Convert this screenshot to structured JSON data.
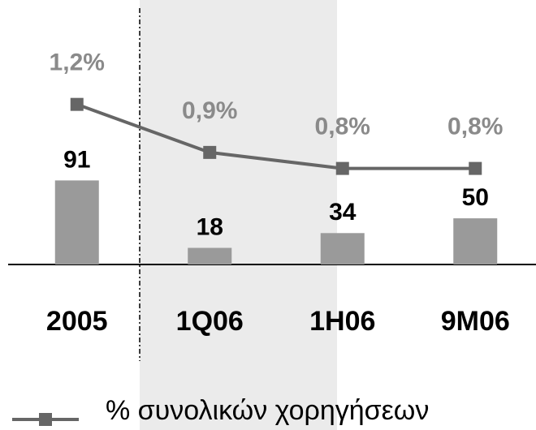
{
  "chart_data": {
    "type": "bar_line",
    "categories": [
      "2005",
      "1Q06",
      "1H06",
      "9M06"
    ],
    "ylim": [
      0,
      260
    ],
    "y2lim": [
      0.2,
      1.7
    ],
    "series": [
      {
        "type": "bar",
        "color": "#9a9a9a",
        "values": [
          91,
          18,
          34,
          50
        ]
      },
      {
        "type": "line",
        "name": "% συνολικών χορηγήσεων",
        "color": "#666666",
        "axis": "y2",
        "values": [
          1.2,
          0.9,
          0.8,
          0.8
        ],
        "value_labels": [
          "1,2%",
          "0,9%",
          "0,8%",
          "0,8%"
        ]
      }
    ]
  }
}
